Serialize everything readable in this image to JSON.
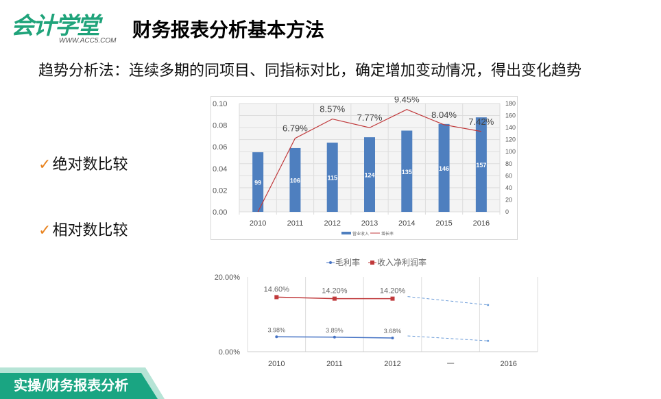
{
  "logo": {
    "main": "会计学堂",
    "sub": "WWW.ACC5.COM"
  },
  "title": "财务报表分析基本方法",
  "intro": "趋势分析法：连续多期的同项目、同指标对比，确定增加变动情况，得出变化趋势",
  "bullets": [
    {
      "icon": "checkmark-icon",
      "label": "绝对数比较"
    },
    {
      "icon": "checkmark-icon",
      "label": "相对数比较"
    }
  ],
  "footer": {
    "label": "实操/财务报表分析",
    "color": "#1aa582"
  },
  "chart_data": [
    {
      "type": "bar+line",
      "categories": [
        "2010",
        "2011",
        "2012",
        "2013",
        "2014",
        "2015",
        "2016"
      ],
      "series": [
        {
          "name": "营业收入",
          "type": "bar",
          "axis": "right",
          "values": [
            99,
            106,
            115,
            124,
            135,
            146,
            157
          ],
          "labels": [
            "99",
            "106",
            "115",
            "124",
            "135",
            "146",
            "157"
          ],
          "color": "#4e7fbf"
        },
        {
          "name": "增长率",
          "type": "line",
          "axis": "left",
          "values": [
            0,
            0.0679,
            0.0857,
            0.0777,
            0.0945,
            0.0804,
            0.0742
          ],
          "labels": [
            "",
            "6.79%",
            "8.57%",
            "7.77%",
            "9.45%",
            "8.04%",
            "7.42%"
          ],
          "color": "#c0393b"
        }
      ],
      "left_axis": {
        "ylim": [
          0,
          0.1
        ],
        "ticks": [
          "0.00",
          "0.02",
          "0.04",
          "0.06",
          "0.08",
          "0.10"
        ]
      },
      "right_axis": {
        "ylim": [
          0,
          180
        ],
        "ticks": [
          "0",
          "20",
          "40",
          "60",
          "80",
          "100",
          "120",
          "140",
          "160",
          "180"
        ]
      },
      "grid": true,
      "legend": "bottom"
    },
    {
      "type": "line",
      "categories": [
        "2010",
        "2011",
        "2012",
        "一",
        "2016"
      ],
      "series": [
        {
          "name": "毛利率",
          "values": [
            3.98,
            3.89,
            3.68,
            null,
            2.9
          ],
          "labels": [
            "3.98%",
            "3.89%",
            "3.68%",
            "",
            ""
          ],
          "color": "#4472c4"
        },
        {
          "name": "收入净利润率",
          "values": [
            14.6,
            14.2,
            14.2,
            null,
            12.5
          ],
          "labels": [
            "14.60%",
            "14.20%",
            "14.20%",
            "",
            ""
          ],
          "color": "#c0393b"
        }
      ],
      "ylim": [
        0,
        20
      ],
      "ticks": [
        "0.00%",
        "20.00%"
      ],
      "grid": "vertical",
      "legend": "top"
    }
  ]
}
